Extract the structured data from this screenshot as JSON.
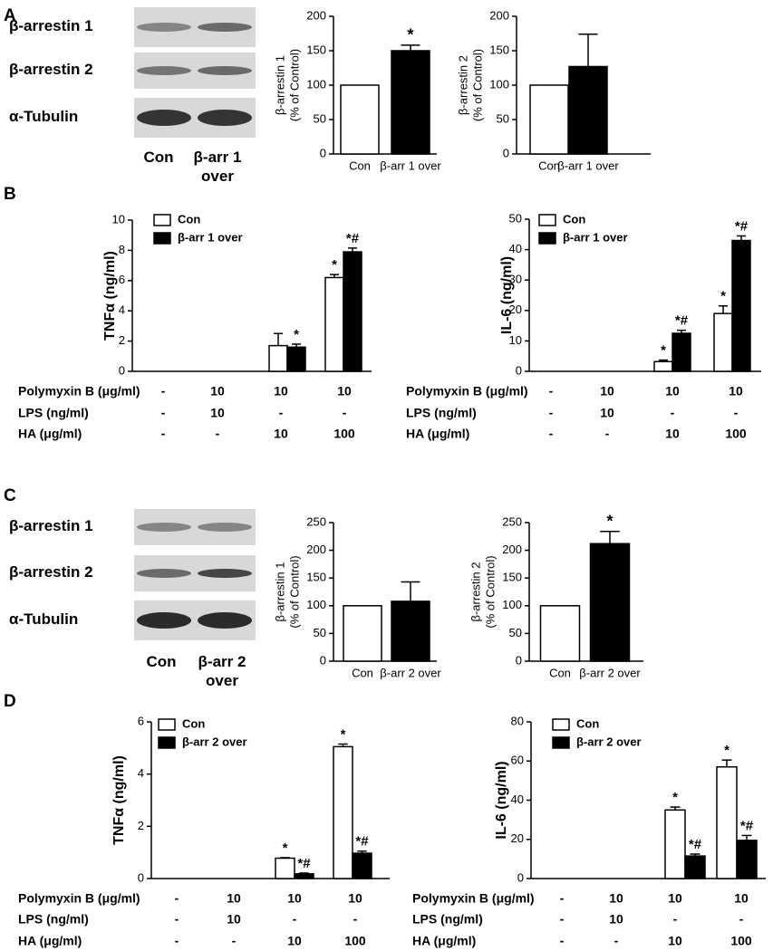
{
  "panel_labels": [
    "A",
    "B",
    "C",
    "D"
  ],
  "blots": [
    {
      "rows": [
        "β-arrestin 1",
        "β-arrestin 2",
        "α-Tubulin"
      ],
      "lanes": [
        "Con",
        "β-arr 1 over"
      ]
    },
    {
      "rows": [
        "β-arrestin 1",
        "β-arrestin 2",
        "α-Tubulin"
      ],
      "lanes": [
        "Con",
        "β-arr 2 over"
      ]
    }
  ],
  "chart_data": [
    {
      "type": "bar",
      "ylabel": [
        "β-arrestin 1",
        "(% of Control)"
      ],
      "categories": [
        "Con",
        "β-arr 1 over"
      ],
      "values": [
        100,
        150
      ],
      "errors": [
        null,
        8
      ],
      "colors": [
        "#ffffff",
        "#000000"
      ],
      "annotations": [
        null,
        "*"
      ],
      "ylim": [
        0,
        200
      ],
      "yticks": [
        0,
        50,
        100,
        150,
        200
      ]
    },
    {
      "type": "bar",
      "ylabel": [
        "β-arrestin 2",
        "(% of Control)"
      ],
      "categories": [
        "Con",
        "β-arr 1 over"
      ],
      "values": [
        100,
        127
      ],
      "errors": [
        null,
        47
      ],
      "colors": [
        "#ffffff",
        "#000000"
      ],
      "ylim": [
        0,
        200
      ],
      "yticks": [
        0,
        50,
        100,
        150,
        200
      ]
    },
    {
      "type": "grouped",
      "ylabel": "TNFα (ng/ml)",
      "ylim": [
        0,
        10
      ],
      "yticks": [
        0,
        2,
        4,
        6,
        8,
        10
      ],
      "series": [
        {
          "name": "Con",
          "color": "#ffffff",
          "values": [
            0,
            0,
            1.7,
            6.2
          ],
          "errors": [
            null,
            null,
            0.8,
            0.2
          ],
          "annotations": [
            null,
            null,
            null,
            "*"
          ]
        },
        {
          "name": "β-arr 1 over",
          "color": "#000000",
          "values": [
            0,
            0,
            1.6,
            7.9
          ],
          "errors": [
            null,
            null,
            0.2,
            0.25
          ],
          "annotations": [
            null,
            null,
            "*",
            "*#"
          ]
        }
      ],
      "conditions": [
        {
          "label": "Polymyxin B (μg/ml)",
          "values": [
            "-",
            "10",
            "10",
            "10"
          ]
        },
        {
          "label": "LPS (ng/ml)",
          "values": [
            "-",
            "10",
            "-",
            "-"
          ]
        },
        {
          "label": "HA (μg/ml)",
          "values": [
            "-",
            "-",
            "10",
            "100"
          ]
        }
      ]
    },
    {
      "type": "grouped",
      "ylabel": "IL-6 (ng/ml)",
      "ylim": [
        0,
        50
      ],
      "yticks": [
        0,
        10,
        20,
        30,
        40,
        50
      ],
      "series": [
        {
          "name": "Con",
          "color": "#ffffff",
          "values": [
            0,
            0,
            3.2,
            19
          ],
          "errors": [
            null,
            null,
            0.5,
            2.5
          ],
          "annotations": [
            null,
            null,
            "*",
            "*"
          ]
        },
        {
          "name": "β-arr 1 over",
          "color": "#000000",
          "values": [
            0,
            0,
            12.5,
            43
          ],
          "errors": [
            null,
            null,
            1,
            1.5
          ],
          "annotations": [
            null,
            null,
            "*#",
            "*#"
          ]
        }
      ],
      "conditions": [
        {
          "label": "Polymyxin B (μg/ml)",
          "values": [
            "-",
            "10",
            "10",
            "10"
          ]
        },
        {
          "label": "LPS (ng/ml)",
          "values": [
            "-",
            "10",
            "-",
            "-"
          ]
        },
        {
          "label": "HA (μg/ml)",
          "values": [
            "-",
            "-",
            "10",
            "100"
          ]
        }
      ]
    },
    {
      "type": "bar",
      "ylabel": [
        "β-arrestin 1",
        "(% of Control)"
      ],
      "categories": [
        "Con",
        "β-arr 2 over"
      ],
      "values": [
        100,
        108
      ],
      "errors": [
        null,
        35
      ],
      "colors": [
        "#ffffff",
        "#000000"
      ],
      "ylim": [
        0,
        250
      ],
      "yticks": [
        0,
        50,
        100,
        150,
        200,
        250
      ]
    },
    {
      "type": "bar",
      "ylabel": [
        "β-arrestin 2",
        "(% of Control)"
      ],
      "categories": [
        "Con",
        "β-arr 2 over"
      ],
      "values": [
        100,
        212
      ],
      "errors": [
        null,
        22
      ],
      "colors": [
        "#ffffff",
        "#000000"
      ],
      "annotations": [
        null,
        "*"
      ],
      "ylim": [
        0,
        250
      ],
      "yticks": [
        0,
        50,
        100,
        150,
        200,
        250
      ]
    },
    {
      "type": "grouped",
      "ylabel": "TNFα (ng/ml)",
      "ylim": [
        0,
        6
      ],
      "yticks": [
        0,
        2,
        4,
        6
      ],
      "series": [
        {
          "name": "Con",
          "color": "#ffffff",
          "values": [
            0,
            0,
            0.78,
            5.05
          ],
          "errors": [
            null,
            null,
            0.02,
            0.1
          ],
          "annotations": [
            null,
            null,
            "*",
            "*"
          ]
        },
        {
          "name": "β-arr 2 over",
          "color": "#000000",
          "values": [
            0,
            0,
            0.18,
            0.97
          ],
          "errors": [
            null,
            null,
            0.03,
            0.08
          ],
          "annotations": [
            null,
            null,
            "*#",
            "*#"
          ]
        }
      ],
      "conditions": [
        {
          "label": "Polymyxin B (μg/ml)",
          "values": [
            "-",
            "10",
            "10",
            "10"
          ]
        },
        {
          "label": "LPS (ng/ml)",
          "values": [
            "-",
            "10",
            "-",
            "-"
          ]
        },
        {
          "label": "HA (μg/ml)",
          "values": [
            "-",
            "-",
            "10",
            "100"
          ]
        }
      ]
    },
    {
      "type": "grouped",
      "ylabel": "IL-6 (ng/ml)",
      "ylim": [
        0,
        80
      ],
      "yticks": [
        0,
        20,
        40,
        60,
        80
      ],
      "series": [
        {
          "name": "Con",
          "color": "#ffffff",
          "values": [
            0,
            0,
            35,
            57
          ],
          "errors": [
            null,
            null,
            1.5,
            3.5
          ],
          "annotations": [
            null,
            null,
            "*",
            "*"
          ]
        },
        {
          "name": "β-arr 2 over",
          "color": "#000000",
          "values": [
            0,
            0,
            11.5,
            19.5
          ],
          "errors": [
            null,
            null,
            1,
            2.5
          ],
          "annotations": [
            null,
            null,
            "*#",
            "*#"
          ]
        }
      ],
      "conditions": [
        {
          "label": "Polymyxin B (μg/ml)",
          "values": [
            "-",
            "10",
            "10",
            "10"
          ]
        },
        {
          "label": "LPS (ng/ml)",
          "values": [
            "-",
            "10",
            "-",
            "-"
          ]
        },
        {
          "label": "HA (μg/ml)",
          "values": [
            "-",
            "-",
            "10",
            "100"
          ]
        }
      ]
    }
  ]
}
